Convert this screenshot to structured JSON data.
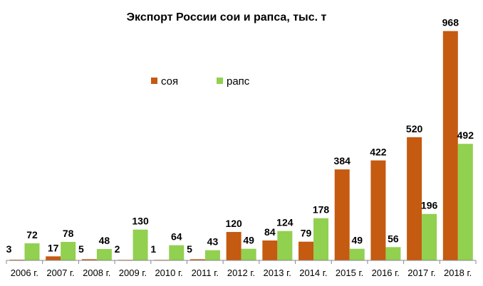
{
  "chart_data": {
    "type": "bar",
    "title": "Экспорт России сои и рапса, тыс. т",
    "xlabel": "",
    "ylabel": "",
    "categories": [
      "2006 г.",
      "2007 г.",
      "2008 г.",
      "2009 г.",
      "2010 г.",
      "2011 г.",
      "2012 г.",
      "2013 г.",
      "2014 г.",
      "2015 г.",
      "2016 г.",
      "2017 г.",
      "2018 г."
    ],
    "series": [
      {
        "name": "соя",
        "color": "#C55A11",
        "values": [
          3,
          17,
          5,
          2,
          1,
          5,
          120,
          84,
          79,
          384,
          422,
          520,
          968
        ]
      },
      {
        "name": "рапс",
        "color": "#92D050",
        "values": [
          72,
          78,
          48,
          130,
          64,
          43,
          49,
          124,
          178,
          49,
          56,
          196,
          492
        ]
      }
    ],
    "ylim": [
      0,
      1000
    ],
    "grid": false,
    "legend_position": "upper-center",
    "data_labels": true
  }
}
